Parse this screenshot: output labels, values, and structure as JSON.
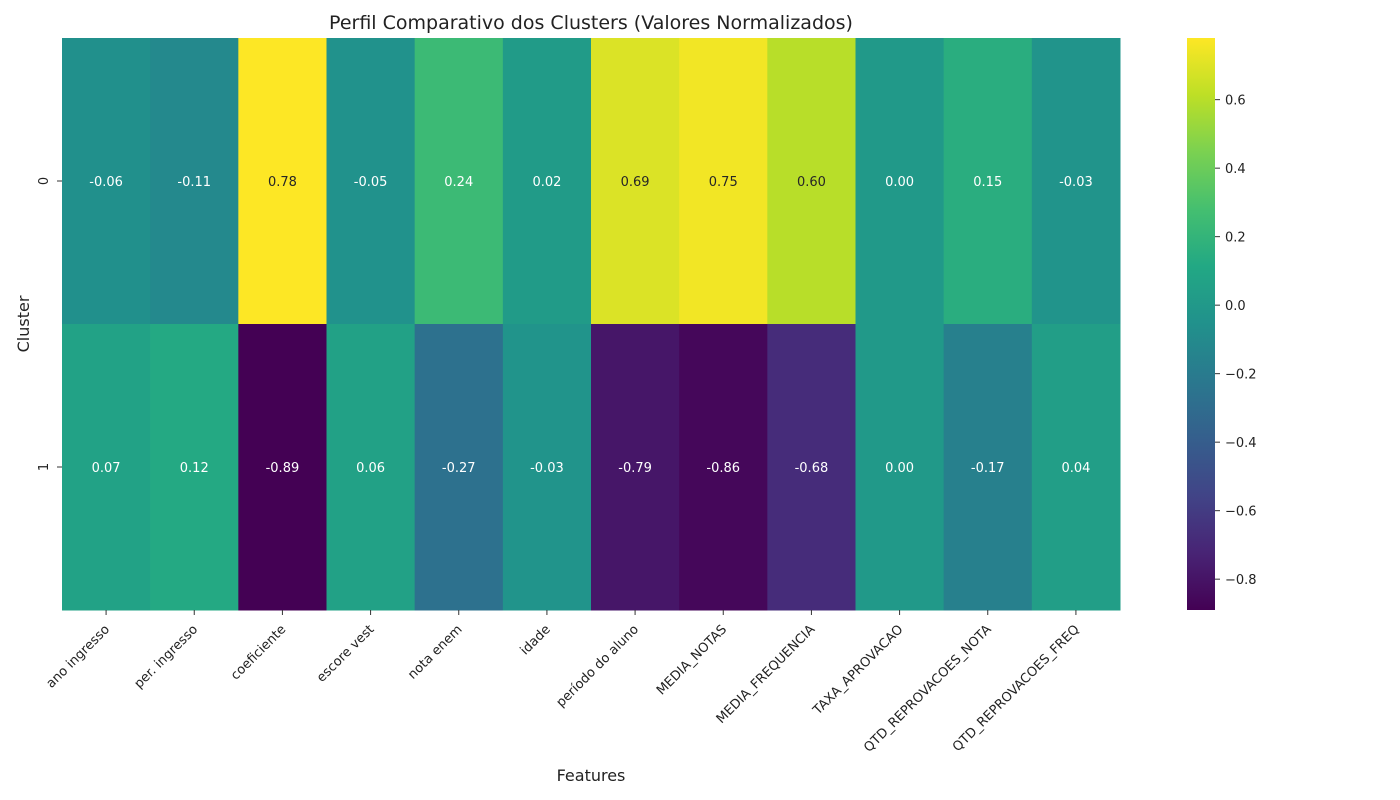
{
  "chart_data": {
    "type": "heatmap",
    "title": "Perfil Comparativo dos Clusters (Valores Normalizados)",
    "xlabel": "Features",
    "ylabel": "Cluster",
    "x": [
      "ano ingresso",
      "per. ingresso",
      "coeficiente",
      "escore vest",
      "nota enem",
      "idade",
      "período do aluno",
      "MEDIA_NOTAS",
      "MEDIA_FREQUENCIA",
      "TAXA_APROVACAO",
      "QTD_REPROVACOES_NOTA",
      "QTD_REPROVACOES_FREQ"
    ],
    "y": [
      "0",
      "1"
    ],
    "values": [
      [
        -0.06,
        -0.11,
        0.78,
        -0.05,
        0.24,
        0.02,
        0.69,
        0.75,
        0.6,
        0.0,
        0.15,
        -0.03
      ],
      [
        0.07,
        0.12,
        -0.89,
        0.06,
        -0.27,
        -0.03,
        -0.79,
        -0.86,
        -0.68,
        0.0,
        -0.17,
        0.04
      ]
    ],
    "value_labels": [
      [
        "-0.06",
        "-0.11",
        "0.78",
        "-0.05",
        "0.24",
        "0.02",
        "0.69",
        "0.75",
        "0.60",
        "0.00",
        "0.15",
        "-0.03"
      ],
      [
        "0.07",
        "0.12",
        "-0.89",
        "0.06",
        "-0.27",
        "-0.03",
        "-0.79",
        "-0.86",
        "-0.68",
        "0.00",
        "-0.17",
        "0.04"
      ]
    ],
    "colormap": "viridis",
    "colorbar": {
      "vmin": -0.89,
      "vmax": 0.78,
      "ticks": [
        -0.8,
        -0.6,
        -0.4,
        -0.2,
        0.0,
        0.2,
        0.4,
        0.6
      ],
      "tick_labels": [
        "−0.8",
        "−0.6",
        "−0.4",
        "−0.2",
        "0.0",
        "0.2",
        "0.4",
        "0.6"
      ]
    }
  }
}
